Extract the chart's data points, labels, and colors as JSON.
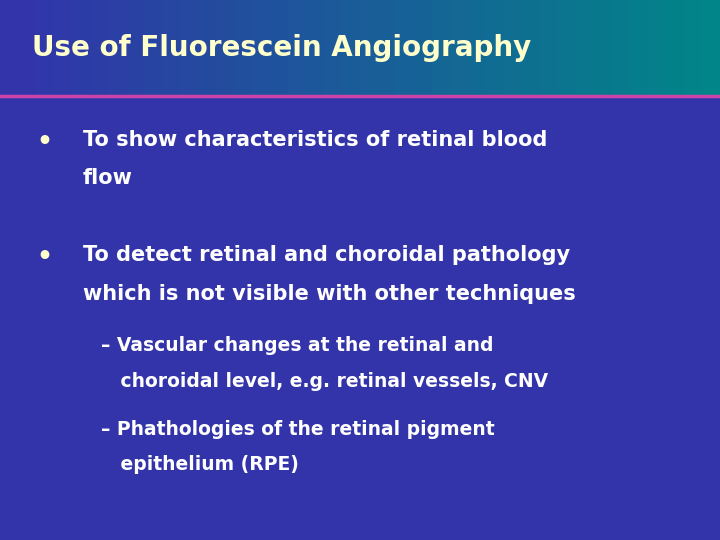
{
  "title": "Use of Fluorescein Angiography",
  "title_color": "#FFFFCC",
  "title_fontsize": 20,
  "bg_color_main": "#3333AA",
  "header_line_color": "#CC44AA",
  "text_color": "#FFFFFF",
  "bullet_color": "#FFFFCC",
  "bullet1_line1": "To show characteristics of retinal blood",
  "bullet1_line2": "flow",
  "bullet2_line1": "To detect retinal and choroidal pathology",
  "bullet2_line2": "which is not visible with other techniques",
  "sub1_line1": "– Vascular changes at the retinal and",
  "sub1_line2": "   choroidal level, e.g. retinal vessels, CNV",
  "sub2_line1": "– Phathologies of the retinal pigment",
  "sub2_line2": "   epithelium (RPE)",
  "fontsize_bullet": 15,
  "fontsize_sub": 13.5
}
